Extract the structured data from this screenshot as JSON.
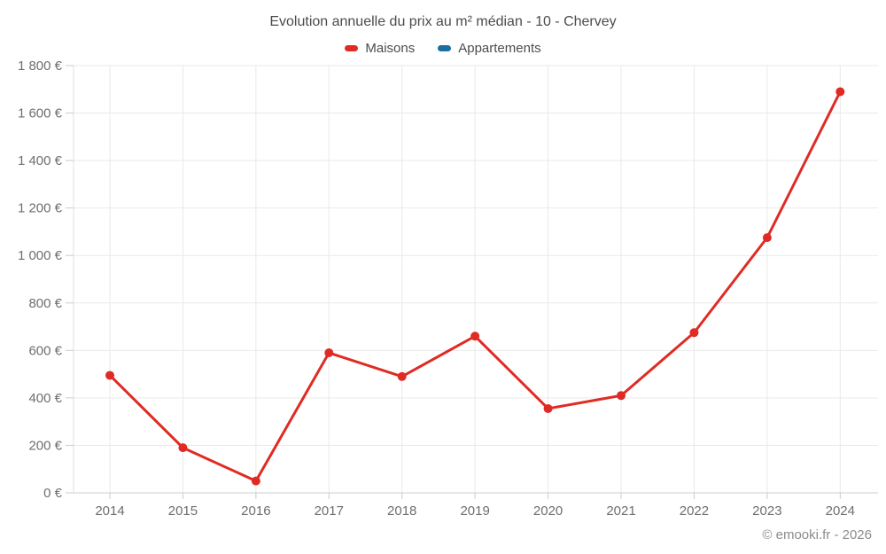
{
  "chart": {
    "title": "Evolution annuelle du prix au m² médian - 10 - Chervey",
    "legend": [
      {
        "label": "Maisons",
        "color": "#e02b24"
      },
      {
        "label": "Appartements",
        "color": "#1b6ea1"
      }
    ]
  },
  "chart_data": {
    "type": "line",
    "title": "Evolution annuelle du prix au m² médian - 10 - Chervey",
    "categories": [
      "2014",
      "2015",
      "2016",
      "2017",
      "2018",
      "2019",
      "2020",
      "2021",
      "2022",
      "2023",
      "2024"
    ],
    "series": [
      {
        "name": "Maisons",
        "color": "#e02b24",
        "values": [
          495,
          190,
          50,
          590,
          490,
          660,
          355,
          410,
          675,
          1075,
          1690
        ]
      },
      {
        "name": "Appartements",
        "color": "#1b6ea1",
        "values": []
      }
    ],
    "xlabel": "",
    "ylabel": "",
    "ylim": [
      0,
      1800
    ],
    "y_tick_step": 200,
    "y_tick_labels": [
      "0 €",
      "200 €",
      "400 €",
      "600 €",
      "800 €",
      "1 000 €",
      "1 200 €",
      "1 400 €",
      "1 600 €",
      "1 800 €"
    ],
    "grid": true,
    "legend_position": "top",
    "currency": "€"
  },
  "footer": {
    "text": "© emooki.fr - 2026"
  },
  "colors": {
    "grid": "#e9e9e9",
    "axis_x": "#cccccc",
    "axis_y": "#e0e0e0",
    "tick_text": "#6e6e6e",
    "title_text": "#4c4c4c",
    "footer_text": "#8c8c8c"
  }
}
